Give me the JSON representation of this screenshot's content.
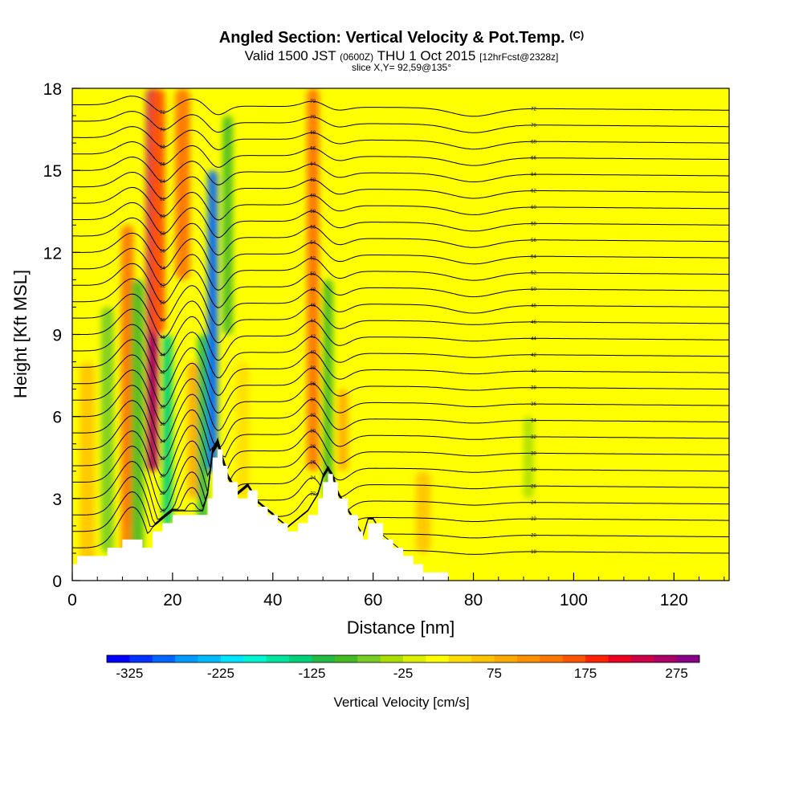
{
  "header": {
    "title_main": "Angled Section: Vertical Velocity & Pot.Temp.",
    "title_units": "(C)",
    "valid_prefix": "Valid 1500 JST",
    "valid_utc": "(0600Z)",
    "valid_date": "THU 1 Oct 2015",
    "valid_fcst": "[12hrFcst@2328z]",
    "slice": "slice X,Y= 92,59@135°"
  },
  "colors": {
    "background": "#ffff00",
    "terrain": "#ffffff",
    "contour": "#000000"
  },
  "chart_data": {
    "type": "heatmap",
    "xlabel": "Distance [nm]",
    "ylabel": "Height [Kft MSL]",
    "xlim": [
      0,
      131
    ],
    "ylim": [
      0,
      18
    ],
    "xticks": [
      0,
      20,
      40,
      60,
      80,
      100,
      120
    ],
    "yticks": [
      0,
      3,
      6,
      9,
      12,
      15,
      18
    ],
    "colorbar": {
      "title": "Vertical Velocity [cm/s]",
      "tick_labels": [
        "-325",
        "-225",
        "-125",
        "-25",
        "75",
        "175",
        "275"
      ],
      "tick_values": [
        -325,
        -225,
        -125,
        -25,
        75,
        175,
        275
      ],
      "range": [
        -350,
        300
      ],
      "step": 25,
      "colors": [
        "#0000ff",
        "#0033ff",
        "#0066ff",
        "#0099ff",
        "#00bbff",
        "#00e5ff",
        "#00f5d0",
        "#00e6a0",
        "#00d078",
        "#22bb44",
        "#44bb22",
        "#77cc22",
        "#aadd00",
        "#ddf000",
        "#ffff00",
        "#ffdd00",
        "#ffc400",
        "#ffaa00",
        "#ff9000",
        "#ff7700",
        "#ff5500",
        "#ff2200",
        "#ee0022",
        "#cc0044",
        "#aa0066",
        "#880088"
      ]
    },
    "velocity_features": [
      {
        "x": 3,
        "y": [
          0,
          8
        ],
        "width": 3,
        "value": 50
      },
      {
        "x": 7,
        "y": [
          1,
          10
        ],
        "width": 2.5,
        "value": -75
      },
      {
        "x": 11,
        "y": [
          0,
          13
        ],
        "width": 2.5,
        "value": 125
      },
      {
        "x": 13,
        "y": [
          1,
          11
        ],
        "width": 2.5,
        "value": -100
      },
      {
        "x": 16,
        "y": [
          4,
          18
        ],
        "width": 2.5,
        "value": 250
      },
      {
        "x": 17,
        "y": [
          9,
          18
        ],
        "width": 3,
        "value": 150
      },
      {
        "x": 19,
        "y": [
          2,
          9
        ],
        "width": 2,
        "value": -150
      },
      {
        "x": 22,
        "y": [
          11,
          18
        ],
        "width": 3,
        "value": 125
      },
      {
        "x": 24,
        "y": [
          3,
          8
        ],
        "width": 2,
        "value": 75
      },
      {
        "x": 26,
        "y": [
          2,
          9
        ],
        "width": 2,
        "value": -125
      },
      {
        "x": 28,
        "y": [
          4,
          15
        ],
        "width": 2,
        "value": -300
      },
      {
        "x": 31,
        "y": [
          9,
          17
        ],
        "width": 2,
        "value": -100
      },
      {
        "x": 34,
        "y": [
          3,
          8
        ],
        "width": 2.5,
        "value": 25
      },
      {
        "x": 48,
        "y": [
          4,
          18
        ],
        "width": 2.5,
        "value": 125
      },
      {
        "x": 51,
        "y": [
          3,
          11
        ],
        "width": 2,
        "value": -100
      },
      {
        "x": 54,
        "y": [
          4,
          7
        ],
        "width": 2,
        "value": 75
      },
      {
        "x": 70,
        "y": [
          1,
          4
        ],
        "width": 3,
        "value": 50
      },
      {
        "x": 91,
        "y": [
          3,
          6
        ],
        "width": 2,
        "value": -50
      }
    ],
    "terrain_height": [
      [
        0,
        0.6
      ],
      [
        1,
        0.9
      ],
      [
        5,
        0.9
      ],
      [
        7,
        1.2
      ],
      [
        10,
        1.5
      ],
      [
        14,
        1.2
      ],
      [
        16,
        1.8
      ],
      [
        18,
        2.1
      ],
      [
        20,
        2.4
      ],
      [
        22,
        2.4
      ],
      [
        26,
        2.4
      ],
      [
        27,
        3.0
      ],
      [
        28,
        4.5
      ],
      [
        29,
        4.8
      ],
      [
        30,
        4.2
      ],
      [
        31,
        3.6
      ],
      [
        33,
        3.0
      ],
      [
        35,
        3.3
      ],
      [
        37,
        2.7
      ],
      [
        39,
        2.4
      ],
      [
        41,
        2.1
      ],
      [
        43,
        1.8
      ],
      [
        45,
        2.1
      ],
      [
        47,
        2.4
      ],
      [
        49,
        3.0
      ],
      [
        50,
        3.6
      ],
      [
        51,
        3.9
      ],
      [
        52,
        3.6
      ],
      [
        53,
        3.0
      ],
      [
        55,
        2.4
      ],
      [
        57,
        1.8
      ],
      [
        58,
        1.5
      ],
      [
        59,
        2.1
      ],
      [
        60,
        2.1
      ],
      [
        62,
        1.5
      ],
      [
        64,
        1.2
      ],
      [
        66,
        0.9
      ],
      [
        68,
        0.6
      ],
      [
        70,
        0.3
      ],
      [
        73,
        0.3
      ],
      [
        75,
        0.0
      ],
      [
        131,
        0.0
      ]
    ],
    "isentropes": [
      {
        "label": "18",
        "base": 1.2
      },
      {
        "label": "20",
        "base": 1.8
      },
      {
        "label": "22",
        "base": 2.4
      },
      {
        "label": "24",
        "base": 3.0
      },
      {
        "label": "26",
        "base": 3.6
      },
      {
        "label": "28",
        "base": 4.2
      },
      {
        "label": "30",
        "base": 4.8
      },
      {
        "label": "32",
        "base": 5.4
      },
      {
        "label": "34",
        "base": 6.0
      },
      {
        "label": "36",
        "base": 6.6
      },
      {
        "label": "38",
        "base": 7.2
      },
      {
        "label": "40",
        "base": 7.8
      },
      {
        "label": "42",
        "base": 8.4
      },
      {
        "label": "44",
        "base": 9.0
      },
      {
        "label": "46",
        "base": 9.6
      },
      {
        "label": "48",
        "base": 10.2
      },
      {
        "label": "50",
        "base": 10.8
      },
      {
        "label": "52",
        "base": 11.4
      },
      {
        "label": "54",
        "base": 12.0
      },
      {
        "label": "56",
        "base": 12.6
      },
      {
        "label": "58",
        "base": 13.2
      },
      {
        "label": "60",
        "base": 13.8
      },
      {
        "label": "62",
        "base": 14.4
      },
      {
        "label": "64",
        "base": 15.0
      },
      {
        "label": "66",
        "base": 15.6
      },
      {
        "label": "68",
        "base": 16.2
      },
      {
        "label": "70",
        "base": 16.8
      },
      {
        "label": "72",
        "base": 17.4
      }
    ]
  }
}
